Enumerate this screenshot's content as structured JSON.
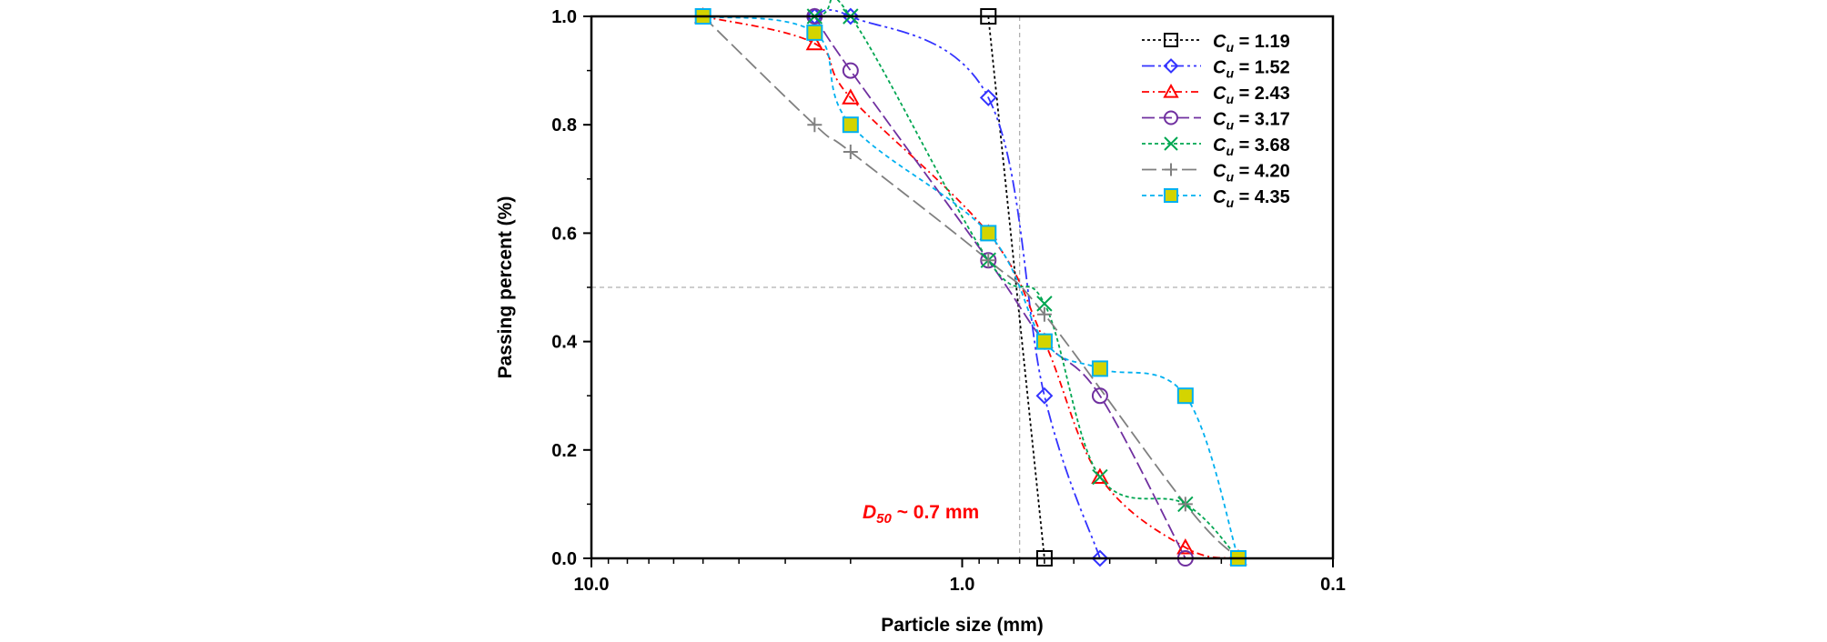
{
  "chart_data": {
    "type": "line",
    "xlabel": "Particle size (mm)",
    "ylabel": "Passing percent (%)",
    "x_scale": "log",
    "x_reversed": true,
    "xlim": [
      10.0,
      0.1
    ],
    "ylim": [
      0.0,
      1.0
    ],
    "x_tick_labels": [
      "10.0",
      "1.0",
      "0.1"
    ],
    "y_tick_labels": [
      "0.0",
      "0.2",
      "0.4",
      "0.6",
      "0.8",
      "1.0"
    ],
    "reference_lines": {
      "x": 0.7,
      "y": 0.5
    },
    "annotation": {
      "symbol": "D",
      "subscript": "50",
      "text": " ~ 0.7 mm",
      "color": "#ff0000"
    },
    "series": [
      {
        "name": "Cu = 1.19",
        "cu_symbol": "C",
        "cu_subscript": "u",
        "cu_value": "1.19",
        "color": "#000000",
        "marker": "square",
        "dash": "3,3",
        "points": [
          [
            0.85,
            1.0
          ],
          [
            0.6,
            0.0
          ]
        ]
      },
      {
        "name": "Cu = 1.52",
        "cu_symbol": "C",
        "cu_subscript": "u",
        "cu_value": "1.52",
        "color": "#3333ff",
        "marker": "diamond",
        "dash": "14,4,3,4,3,4",
        "points": [
          [
            2.5,
            1.0
          ],
          [
            2.0,
            1.0
          ],
          [
            0.85,
            0.85
          ],
          [
            0.6,
            0.3
          ],
          [
            0.425,
            0.0
          ]
        ]
      },
      {
        "name": "Cu = 2.43",
        "cu_symbol": "C",
        "cu_subscript": "u",
        "cu_value": "2.43",
        "color": "#ff0000",
        "marker": "triangle",
        "dash": "8,4,2,4",
        "points": [
          [
            5.0,
            1.0
          ],
          [
            2.5,
            0.95
          ],
          [
            2.0,
            0.85
          ],
          [
            0.85,
            0.6
          ],
          [
            0.6,
            0.4
          ],
          [
            0.425,
            0.15
          ],
          [
            0.25,
            0.02
          ],
          [
            0.18,
            0.0
          ]
        ]
      },
      {
        "name": "Cu = 3.17",
        "cu_symbol": "C",
        "cu_subscript": "u",
        "cu_value": "3.17",
        "color": "#7030a0",
        "marker": "circle",
        "dash": "14,5",
        "points": [
          [
            2.5,
            1.0
          ],
          [
            2.0,
            0.9
          ],
          [
            0.85,
            0.55
          ],
          [
            0.6,
            0.4
          ],
          [
            0.425,
            0.3
          ],
          [
            0.25,
            0.0
          ]
        ]
      },
      {
        "name": "Cu = 3.68",
        "cu_symbol": "C",
        "cu_subscript": "u",
        "cu_value": "3.68",
        "color": "#00a651",
        "marker": "x",
        "dash": "4,3",
        "points": [
          [
            5.0,
            1.0
          ],
          [
            2.5,
            1.0
          ],
          [
            2.0,
            1.0
          ],
          [
            0.85,
            0.55
          ],
          [
            0.6,
            0.47
          ],
          [
            0.425,
            0.15
          ],
          [
            0.25,
            0.1
          ],
          [
            0.18,
            0.0
          ]
        ]
      },
      {
        "name": "Cu = 4.20",
        "cu_symbol": "C",
        "cu_subscript": "u",
        "cu_value": "4.20",
        "color": "#808080",
        "marker": "plus",
        "dash": "16,6",
        "points": [
          [
            5.0,
            1.0
          ],
          [
            2.5,
            0.8
          ],
          [
            2.0,
            0.75
          ],
          [
            0.85,
            0.55
          ],
          [
            0.6,
            0.45
          ],
          [
            0.25,
            0.1
          ],
          [
            0.18,
            0.0
          ]
        ]
      },
      {
        "name": "Cu = 4.35",
        "cu_symbol": "C",
        "cu_subscript": "u",
        "cu_value": "4.35",
        "color": "#00b0f0",
        "marker": "filled-square",
        "marker_fill": "#d4d400",
        "dash": "5,4",
        "points": [
          [
            5.0,
            1.0
          ],
          [
            2.5,
            0.97
          ],
          [
            2.0,
            0.8
          ],
          [
            0.85,
            0.6
          ],
          [
            0.6,
            0.4
          ],
          [
            0.425,
            0.35
          ],
          [
            0.25,
            0.3
          ],
          [
            0.18,
            0.0
          ]
        ]
      }
    ]
  }
}
